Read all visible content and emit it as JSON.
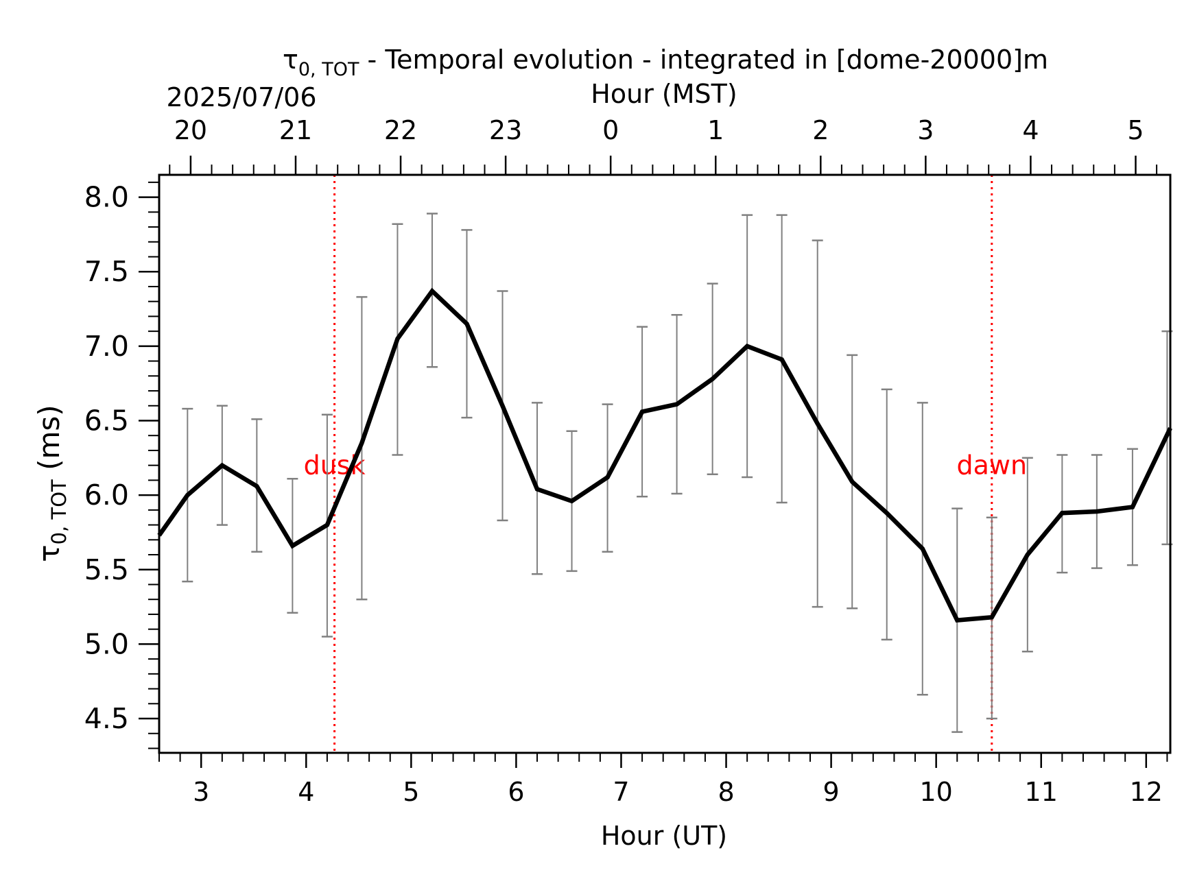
{
  "chart_data": {
    "type": "line",
    "title": "τ0,TOT - Temporal evolution - integrated in [dome-20000]m",
    "title_symbol": "τ",
    "title_subscript": "0, TOT",
    "title_rest": " - Temporal evolution - integrated in [dome-20000]m",
    "date_label": "2025/07/06",
    "xlabel": "Hour (UT)",
    "x2label": "Hour (MST)",
    "ylabel": "τ0,TOT (ms)",
    "ylabel_symbol": "τ",
    "ylabel_subscript": "0, TOT",
    "ylabel_rest": " (ms)",
    "xlim": [
      2.6,
      12.23
    ],
    "ylim": [
      4.27,
      8.15
    ],
    "x_ticks": [
      3,
      4,
      5,
      6,
      7,
      8,
      9,
      10,
      11,
      12
    ],
    "x_tick_labels": [
      "3",
      "4",
      "5",
      "6",
      "7",
      "8",
      "9",
      "10",
      "11",
      "12"
    ],
    "x2_ticks": [
      2.9,
      3.9,
      4.9,
      5.9,
      6.9,
      7.9,
      8.9,
      9.9,
      10.9,
      11.9
    ],
    "x2_tick_labels": [
      "20",
      "21",
      "22",
      "23",
      "0",
      "1",
      "2",
      "3",
      "4",
      "5"
    ],
    "y_ticks": [
      4.5,
      5.0,
      5.5,
      6.0,
      6.5,
      7.0,
      7.5,
      8.0
    ],
    "y_tick_labels": [
      "4.5",
      "5.0",
      "5.5",
      "6.0",
      "6.5",
      "7.0",
      "7.5",
      "8.0"
    ],
    "grid": false,
    "series": [
      {
        "color": "#000000",
        "x": [
          2.6,
          2.87,
          3.2,
          3.53,
          3.87,
          4.2,
          4.53,
          4.87,
          5.2,
          5.53,
          5.87,
          6.2,
          6.53,
          6.87,
          7.2,
          7.53,
          7.87,
          8.2,
          8.53,
          8.87,
          9.2,
          9.53,
          9.87,
          10.2,
          10.53,
          10.87,
          11.2,
          11.53,
          11.87,
          12.23
        ],
        "y": [
          5.73,
          6.0,
          6.2,
          6.06,
          5.66,
          5.8,
          6.35,
          7.05,
          7.37,
          7.15,
          6.6,
          6.04,
          5.96,
          6.12,
          6.56,
          6.61,
          6.78,
          7.0,
          6.91,
          6.48,
          6.09,
          5.88,
          5.64,
          5.16,
          5.18,
          5.6,
          5.88,
          5.89,
          5.92,
          6.45
        ]
      }
    ],
    "error_bars": {
      "color": "#808080",
      "x": [
        2.87,
        3.2,
        3.53,
        3.87,
        4.2,
        4.53,
        4.87,
        5.2,
        5.53,
        5.87,
        6.2,
        6.53,
        6.87,
        7.2,
        7.53,
        7.87,
        8.2,
        8.53,
        8.87,
        9.2,
        9.53,
        9.87,
        10.2,
        10.53,
        10.87,
        11.2,
        11.53,
        11.87,
        12.2
      ],
      "low": [
        5.42,
        5.8,
        5.62,
        5.21,
        5.05,
        5.3,
        6.27,
        6.86,
        6.52,
        5.83,
        5.47,
        5.49,
        5.62,
        5.99,
        6.01,
        6.14,
        6.12,
        5.95,
        5.25,
        5.24,
        5.03,
        4.66,
        4.41,
        4.5,
        4.95,
        5.48,
        5.51,
        5.53,
        5.67
      ],
      "high": [
        6.58,
        6.6,
        6.51,
        6.11,
        6.54,
        7.33,
        7.82,
        7.89,
        7.78,
        7.37,
        6.62,
        6.43,
        6.61,
        7.13,
        7.21,
        7.42,
        7.88,
        7.88,
        7.71,
        6.94,
        6.71,
        6.62,
        5.91,
        5.85,
        6.25,
        6.27,
        6.27,
        6.31,
        7.1
      ]
    },
    "vertical_lines": [
      {
        "x": 4.27,
        "label": "dusk",
        "label_y": 6.2,
        "color": "#ff0000"
      },
      {
        "x": 10.53,
        "label": "dawn",
        "label_y": 6.2,
        "color": "#ff0000"
      }
    ]
  }
}
